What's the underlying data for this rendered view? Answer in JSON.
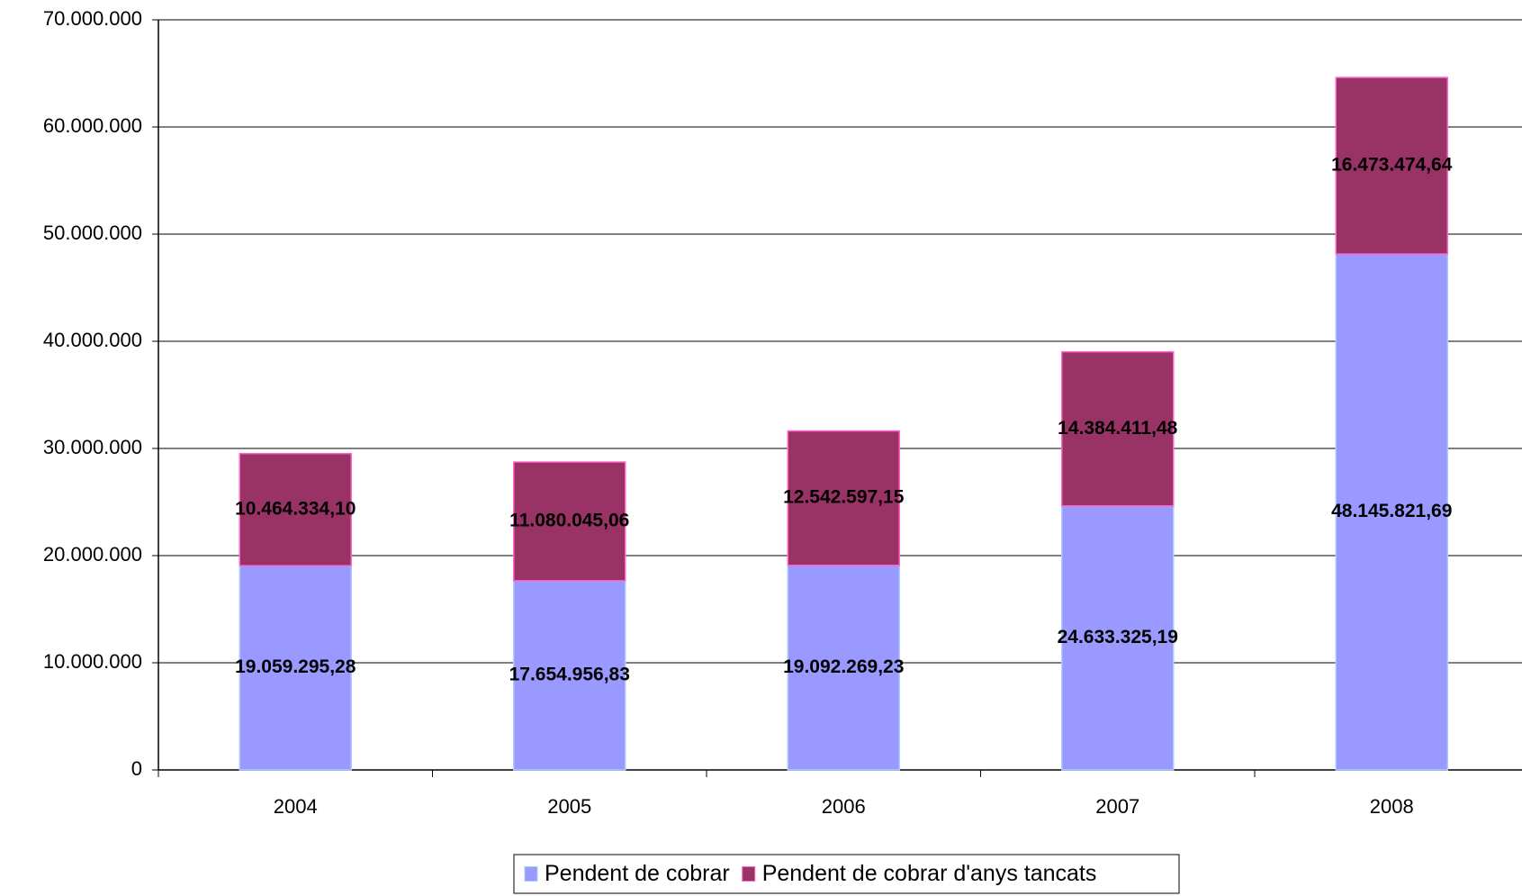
{
  "chart_data": {
    "type": "stacked_bar",
    "categories": [
      "2004",
      "2005",
      "2006",
      "2007",
      "2008"
    ],
    "series": [
      {
        "name": "Pendent de cobrar",
        "color": "#9999ff",
        "values": [
          19059295.28,
          17654956.83,
          19092269.23,
          24633325.19,
          48145821.69
        ],
        "value_labels": [
          "19.059.295,28",
          "17.654.956,83",
          "19.092.269,23",
          "24.633.325,19",
          "48.145.821,69"
        ]
      },
      {
        "name": "Pendent de cobrar d'anys tancats",
        "color": "#993366",
        "values": [
          10464334.1,
          11080045.06,
          12542597.15,
          14384411.48,
          16473474.64
        ],
        "value_labels": [
          "10.464.334,10",
          "11.080.045,06",
          "12.542.597,15",
          "14.384.411,48",
          "16.473.474,64"
        ]
      }
    ],
    "ylim": [
      0,
      70000000
    ],
    "yticks": [
      0,
      {
        "value": 10000000,
        "label": "10.000.000"
      },
      {
        "value": 20000000,
        "label": "20.000.000"
      },
      {
        "value": 30000000,
        "label": "30.000.000"
      },
      {
        "value": 40000000,
        "label": "40.000.000"
      },
      {
        "value": 50000000,
        "label": "50.000.000"
      },
      {
        "value": 60000000,
        "label": "60.000.000"
      },
      {
        "value": 70000000,
        "label": "70.000.000"
      }
    ],
    "grid": true,
    "legend": "bottom"
  }
}
